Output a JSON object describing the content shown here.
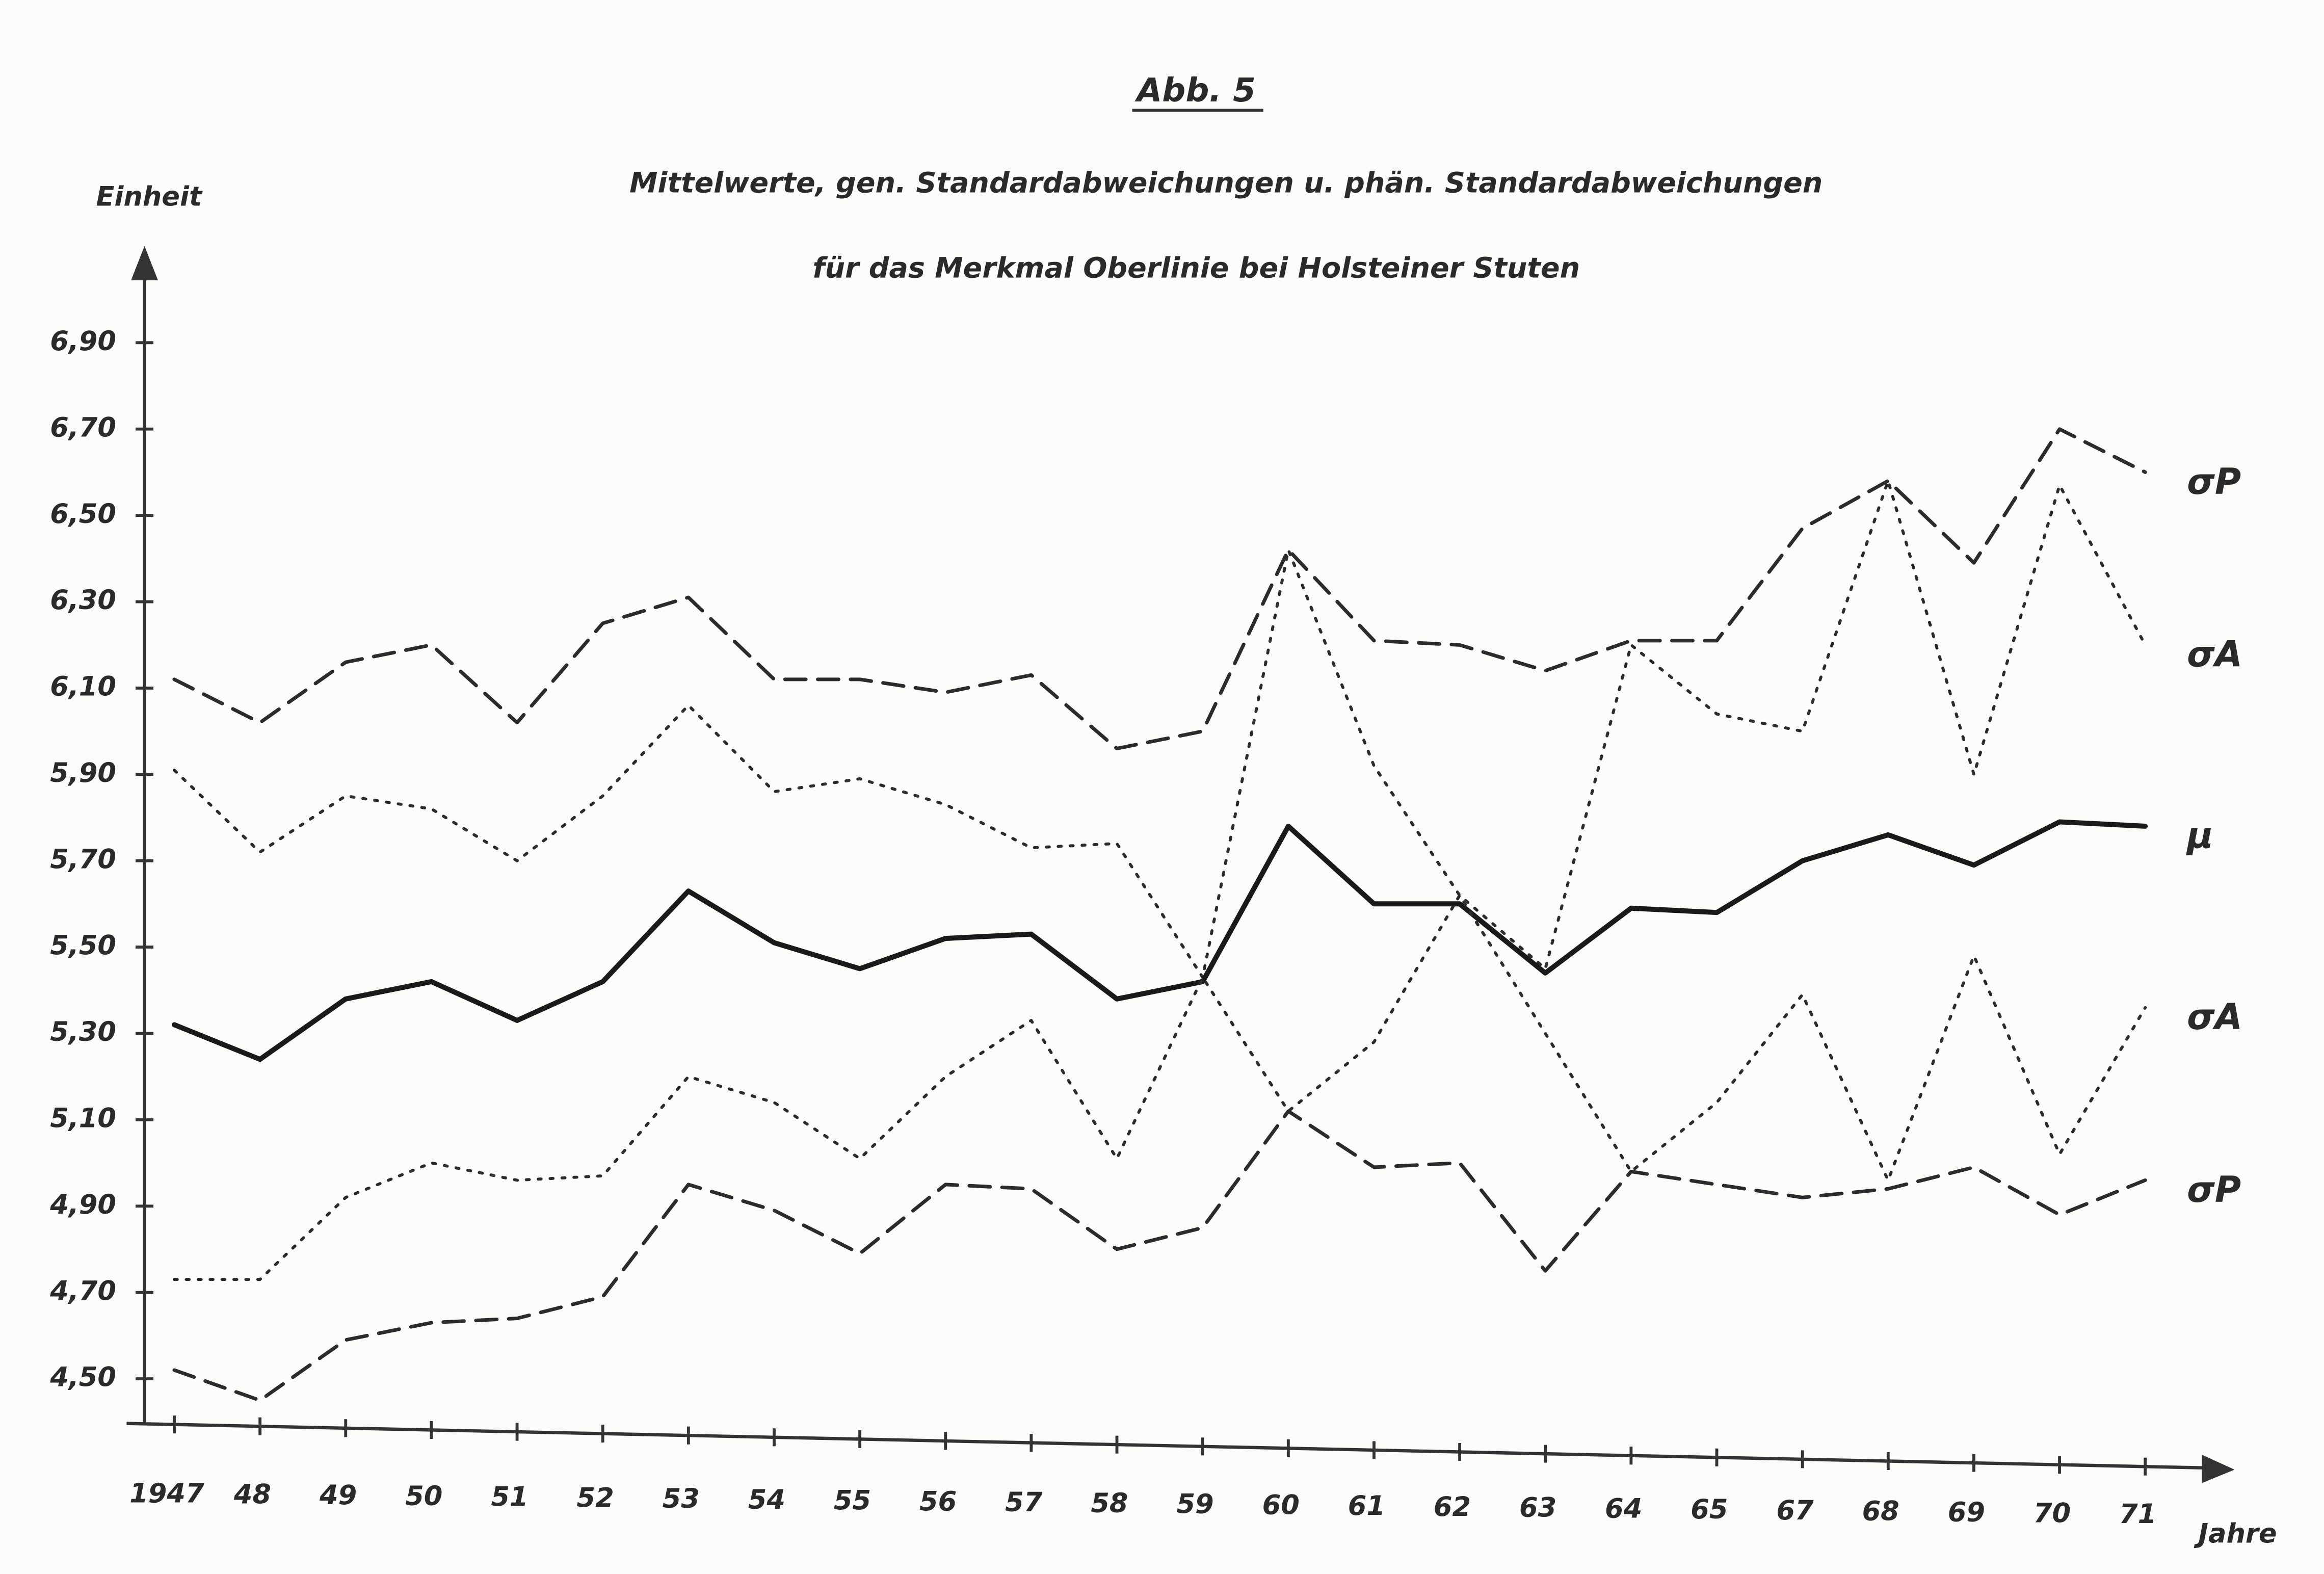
{
  "chart_data": {
    "type": "line",
    "title": "Abb. 5",
    "subtitle": [
      "Mittelwerte, gen. Standardabweichungen u. phän. Standardabweichungen",
      "für das Merkmal Oberlinie bei Holsteiner Stuten"
    ],
    "y_label": "Einheit",
    "x_label": "Jahre",
    "categories": [
      "1947",
      "48",
      "49",
      "50",
      "51",
      "52",
      "53",
      "54",
      "55",
      "56",
      "57",
      "58",
      "59",
      "60",
      "61",
      "62",
      "63",
      "64",
      "65",
      "67",
      "68",
      "69",
      "70",
      "71"
    ],
    "ylim": [
      4.4,
      7.1
    ],
    "yticks": [
      {
        "value": 4.5,
        "label": "4,50"
      },
      {
        "value": 4.7,
        "label": "4,70"
      },
      {
        "value": 4.9,
        "label": "4,90"
      },
      {
        "value": 5.1,
        "label": "5,10"
      },
      {
        "value": 5.3,
        "label": "5,30"
      },
      {
        "value": 5.5,
        "label": "5,50"
      },
      {
        "value": 5.7,
        "label": "5,70"
      },
      {
        "value": 5.9,
        "label": "5,90"
      },
      {
        "value": 6.1,
        "label": "6,10"
      },
      {
        "value": 6.3,
        "label": "6,30"
      },
      {
        "value": 6.5,
        "label": "6,50"
      },
      {
        "value": 6.7,
        "label": "6,70"
      },
      {
        "value": 6.9,
        "label": "6,90"
      }
    ],
    "grid": false,
    "series": [
      {
        "name": "σP",
        "color": "#2b2b2b",
        "style": "dashed",
        "values": [
          6.12,
          6.02,
          6.16,
          6.2,
          6.02,
          6.25,
          6.31,
          6.12,
          6.12,
          6.09,
          6.13,
          5.96,
          6.0,
          6.42,
          6.21,
          6.2,
          6.14,
          6.21,
          6.21,
          6.47,
          6.58,
          6.39,
          6.7,
          6.6
        ]
      },
      {
        "name": "σA",
        "color": "#2b2b2b",
        "style": "dotted",
        "values": [
          5.91,
          5.72,
          5.85,
          5.82,
          5.7,
          5.85,
          6.06,
          5.86,
          5.89,
          5.83,
          5.73,
          5.74,
          5.43,
          6.42,
          5.92,
          5.62,
          5.45,
          6.2,
          6.04,
          6.0,
          6.58,
          5.9,
          6.57,
          6.2
        ]
      },
      {
        "name": "μ",
        "color": "#1a1a1a",
        "style": "solid",
        "values": [
          5.32,
          5.24,
          5.38,
          5.42,
          5.33,
          5.42,
          5.63,
          5.51,
          5.45,
          5.52,
          5.53,
          5.38,
          5.42,
          5.78,
          5.6,
          5.6,
          5.44,
          5.59,
          5.58,
          5.7,
          5.76,
          5.69,
          5.79,
          5.78
        ]
      },
      {
        "name": "σA",
        "color": "#2b2b2b",
        "style": "dotted",
        "values": [
          4.73,
          4.73,
          4.92,
          5.0,
          4.96,
          4.97,
          5.2,
          5.14,
          5.01,
          5.2,
          5.33,
          5.01,
          5.43,
          5.12,
          5.28,
          5.62,
          5.3,
          4.98,
          5.14,
          5.39,
          4.96,
          5.48,
          5.02,
          5.36
        ]
      },
      {
        "name": "σP",
        "color": "#2b2b2b",
        "style": "dashed",
        "values": [
          4.52,
          4.45,
          4.59,
          4.63,
          4.64,
          4.69,
          4.95,
          4.89,
          4.79,
          4.95,
          4.94,
          4.8,
          4.85,
          5.12,
          4.99,
          5.0,
          4.75,
          4.98,
          4.95,
          4.92,
          4.94,
          4.99,
          4.88,
          4.96
        ]
      }
    ]
  }
}
